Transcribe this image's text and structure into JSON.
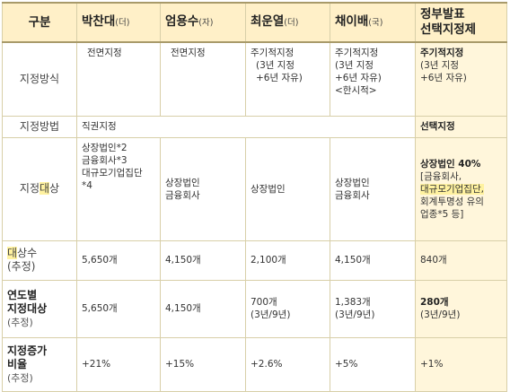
{
  "header": {
    "category": "구분",
    "columns": [
      {
        "name": "박찬대",
        "party": "(더)"
      },
      {
        "name": "엄용수",
        "party": "(자)"
      },
      {
        "name": "최운열",
        "party": "(더)"
      },
      {
        "name": "채이배",
        "party": "(국)"
      },
      {
        "name": "정부발표 선택지정제",
        "party": ""
      }
    ]
  },
  "rows": {
    "method": {
      "label": "지정방식",
      "c1": "전면지정",
      "c2": "전면지정",
      "c3": [
        "주기적지정",
        "(3년 지정",
        "+6년 자유)"
      ],
      "c4": [
        "주기적지정",
        "(3년 지정",
        "+6년 자유)",
        "<한시적>"
      ],
      "c5": [
        "주기적지정",
        "(3년 지정",
        "+6년 자유)"
      ]
    },
    "way": {
      "label": "지정방법",
      "c1": "직권지정",
      "c5": "선택지정"
    },
    "target": {
      "label_a": "지정",
      "label_b": "대",
      "label_c": "상",
      "c1": [
        "상장법인*2",
        "금융회사*3",
        "대규모기업집단",
        "*4"
      ],
      "c2": [
        "상장법인",
        "금융회사"
      ],
      "c3": [
        "상장법인"
      ],
      "c4": [
        "상장법인",
        "금융회사"
      ],
      "c5": [
        "상장법인 40%",
        "[금융회사,",
        "대규모기업집단,",
        "회계투명성 유의",
        "업종*5 등]"
      ]
    },
    "count": {
      "label_a": "대",
      "label_b": "상수",
      "label_sub": "(추정)",
      "values": [
        "5,650개",
        "4,150개",
        "2,100개",
        "4,150개",
        "840개"
      ]
    },
    "annual": {
      "label_a": "연도별",
      "label_b": "지정대상",
      "label_sub": "(추정)",
      "values": [
        "5,650개",
        "4,150개",
        "700개",
        "1,383개",
        "280개"
      ],
      "subs": [
        "",
        "",
        "(3년/9년)",
        "(3년/9년)",
        "(3년/9년)"
      ]
    },
    "rate": {
      "label_a": "지정증가",
      "label_b": "비율",
      "label_sub": "(추정)",
      "values": [
        "+21%",
        "+15%",
        "+2.6%",
        "+5%",
        "+1%"
      ]
    }
  },
  "colors": {
    "header_bg": "#fff0c8",
    "highlight_col_bg": "#fff6db",
    "marker_yellow": "#fff2a0",
    "border": "#d8cfa8"
  }
}
